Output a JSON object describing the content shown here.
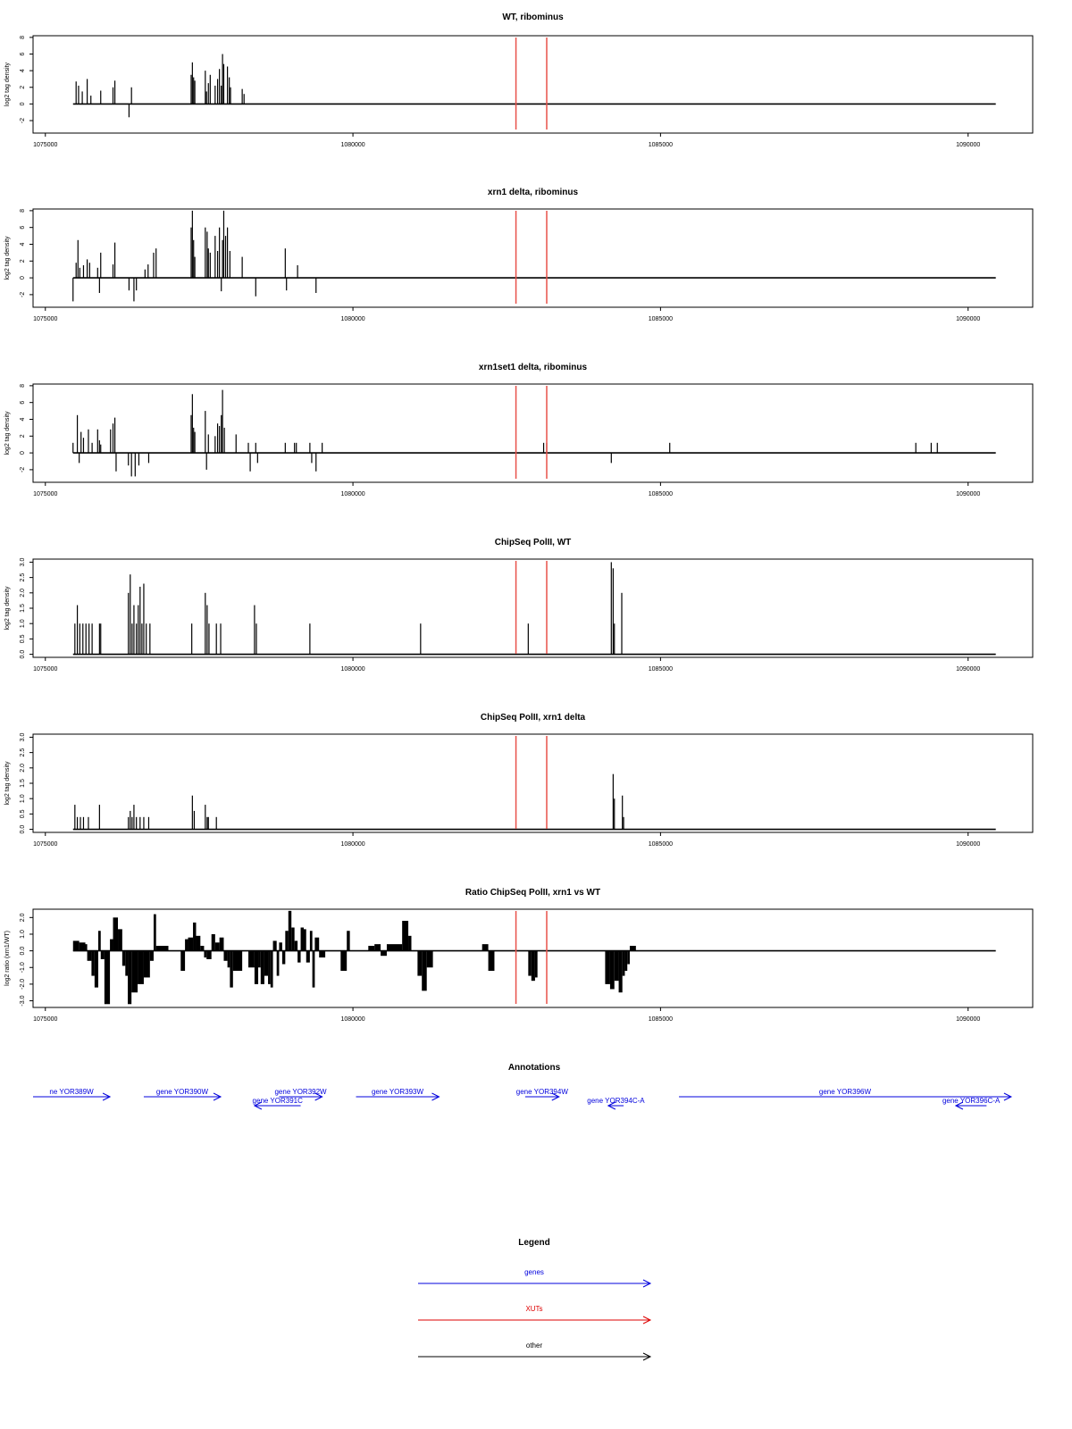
{
  "colors": {
    "signal": "#000000",
    "xut_marker": "#e8514a",
    "gene": "#0000dd",
    "xut": "#dd0000",
    "other": "#000000",
    "axis": "#000000"
  },
  "chart_data": [
    {
      "type": "bar",
      "title": "WT, ribominus",
      "ylabel": "log2 tag density",
      "ylim": [
        -3.5,
        8.2
      ],
      "yticks": [
        -2,
        0,
        2,
        4,
        6,
        8
      ],
      "xlim": [
        1074800,
        1091050
      ],
      "xticks": [
        1075000,
        1080000,
        1085000,
        1090000
      ],
      "baseline": [
        1075450,
        1090450
      ],
      "markers": [
        1082650,
        1083150
      ],
      "bars": [
        [
          1075500,
          2.7
        ],
        [
          1075540,
          2.2
        ],
        [
          1075600,
          1.5
        ],
        [
          1075680,
          3.0
        ],
        [
          1075740,
          1.0
        ],
        [
          1075900,
          1.6
        ],
        [
          1076100,
          2.0
        ],
        [
          1076130,
          2.8
        ],
        [
          1076360,
          -1.6
        ],
        [
          1076400,
          2.0
        ],
        [
          1077370,
          3.5
        ],
        [
          1077390,
          5.0
        ],
        [
          1077410,
          3.2
        ],
        [
          1077430,
          2.8
        ],
        [
          1077600,
          4.0
        ],
        [
          1077620,
          1.5
        ],
        [
          1077650,
          2.5
        ],
        [
          1077680,
          3.5
        ],
        [
          1077760,
          2.2
        ],
        [
          1077800,
          3.0
        ],
        [
          1077830,
          4.2
        ],
        [
          1077860,
          2.2
        ],
        [
          1077880,
          6.0
        ],
        [
          1077900,
          4.8
        ],
        [
          1077960,
          4.5
        ],
        [
          1077990,
          3.2
        ],
        [
          1078010,
          2.0
        ],
        [
          1078200,
          1.8
        ],
        [
          1078230,
          1.2
        ]
      ]
    },
    {
      "type": "bar",
      "title": "xrn1 delta, ribominus",
      "ylabel": "log2 tag density",
      "ylim": [
        -3.5,
        8.2
      ],
      "yticks": [
        -2,
        0,
        2,
        4,
        6,
        8
      ],
      "xlim": [
        1074800,
        1091050
      ],
      "xticks": [
        1075000,
        1080000,
        1085000,
        1090000
      ],
      "baseline": [
        1075450,
        1090450
      ],
      "markers": [
        1082650,
        1083150
      ],
      "bars": [
        [
          1075450,
          -2.8
        ],
        [
          1075500,
          1.8
        ],
        [
          1075530,
          4.5
        ],
        [
          1075560,
          1.2
        ],
        [
          1075620,
          1.5
        ],
        [
          1075680,
          2.2
        ],
        [
          1075720,
          1.8
        ],
        [
          1075850,
          1.2
        ],
        [
          1075880,
          -1.8
        ],
        [
          1075900,
          3.0
        ],
        [
          1076100,
          1.6
        ],
        [
          1076130,
          4.2
        ],
        [
          1076360,
          -1.5
        ],
        [
          1076440,
          -2.8
        ],
        [
          1076480,
          -1.5
        ],
        [
          1076620,
          1.0
        ],
        [
          1076670,
          1.6
        ],
        [
          1076760,
          3.0
        ],
        [
          1076800,
          3.5
        ],
        [
          1077370,
          6.0
        ],
        [
          1077390,
          8.0
        ],
        [
          1077410,
          4.5
        ],
        [
          1077430,
          2.5
        ],
        [
          1077600,
          6.0
        ],
        [
          1077630,
          5.5
        ],
        [
          1077650,
          3.5
        ],
        [
          1077680,
          3.0
        ],
        [
          1077760,
          5.0
        ],
        [
          1077800,
          3.2
        ],
        [
          1077830,
          6.0
        ],
        [
          1077860,
          -1.6
        ],
        [
          1077880,
          4.5
        ],
        [
          1077900,
          8.0
        ],
        [
          1077930,
          5.0
        ],
        [
          1077960,
          6.0
        ],
        [
          1078000,
          3.2
        ],
        [
          1078200,
          2.5
        ],
        [
          1078420,
          -2.2
        ],
        [
          1078900,
          3.5
        ],
        [
          1078920,
          -1.5
        ],
        [
          1079100,
          1.5
        ],
        [
          1079400,
          -1.8
        ]
      ]
    },
    {
      "type": "bar",
      "title": "xrn1set1 delta, ribominus",
      "ylabel": "log2 tag density",
      "ylim": [
        -3.5,
        8.2
      ],
      "yticks": [
        -2,
        0,
        2,
        4,
        6,
        8
      ],
      "xlim": [
        1074800,
        1091050
      ],
      "xticks": [
        1075000,
        1080000,
        1085000,
        1090000
      ],
      "baseline": [
        1075450,
        1090450
      ],
      "markers": [
        1082650,
        1083150
      ],
      "bars": [
        [
          1075450,
          1.2
        ],
        [
          1075520,
          4.5
        ],
        [
          1075550,
          -1.2
        ],
        [
          1075580,
          2.5
        ],
        [
          1075620,
          1.8
        ],
        [
          1075700,
          2.8
        ],
        [
          1075760,
          1.2
        ],
        [
          1075850,
          2.8
        ],
        [
          1075880,
          1.5
        ],
        [
          1075900,
          1.0
        ],
        [
          1076060,
          2.8
        ],
        [
          1076100,
          3.5
        ],
        [
          1076130,
          4.2
        ],
        [
          1076150,
          -2.2
        ],
        [
          1076350,
          -1.5
        ],
        [
          1076400,
          -2.8
        ],
        [
          1076460,
          -2.8
        ],
        [
          1076520,
          -1.5
        ],
        [
          1076680,
          -1.2
        ],
        [
          1077370,
          4.5
        ],
        [
          1077390,
          7.0
        ],
        [
          1077410,
          3.0
        ],
        [
          1077430,
          2.5
        ],
        [
          1077600,
          5.0
        ],
        [
          1077620,
          -2.0
        ],
        [
          1077650,
          2.2
        ],
        [
          1077760,
          2.0
        ],
        [
          1077800,
          3.5
        ],
        [
          1077830,
          3.2
        ],
        [
          1077860,
          4.5
        ],
        [
          1077880,
          7.5
        ],
        [
          1077910,
          3.0
        ],
        [
          1078100,
          2.2
        ],
        [
          1078300,
          1.2
        ],
        [
          1078330,
          -2.2
        ],
        [
          1078420,
          1.2
        ],
        [
          1078450,
          -1.2
        ],
        [
          1078900,
          1.2
        ],
        [
          1079050,
          1.2
        ],
        [
          1079080,
          1.2
        ],
        [
          1079300,
          1.2
        ],
        [
          1079330,
          -1.2
        ],
        [
          1079400,
          -2.2
        ],
        [
          1079500,
          1.2
        ],
        [
          1083100,
          1.2
        ],
        [
          1083150,
          1.2
        ],
        [
          1084200,
          -1.2
        ],
        [
          1085150,
          1.2
        ],
        [
          1089150,
          1.2
        ],
        [
          1089400,
          1.2
        ],
        [
          1089500,
          1.2
        ]
      ]
    },
    {
      "type": "bar",
      "title": "ChipSeq PolII, WT",
      "ylabel": "log2 tag density",
      "ylim": [
        -0.1,
        3.1
      ],
      "yticks": [
        0.0,
        0.5,
        1.0,
        1.5,
        2.0,
        2.5,
        3.0
      ],
      "xlim": [
        1074800,
        1091050
      ],
      "xticks": [
        1075000,
        1080000,
        1085000,
        1090000
      ],
      "baseline": [
        1075450,
        1090450
      ],
      "markers": [
        1082650,
        1083150
      ],
      "bars": [
        [
          1075480,
          1.0
        ],
        [
          1075520,
          1.6
        ],
        [
          1075560,
          1.0
        ],
        [
          1075610,
          1.0
        ],
        [
          1075660,
          1.0
        ],
        [
          1075710,
          1.0
        ],
        [
          1075760,
          1.0
        ],
        [
          1075880,
          1.0
        ],
        [
          1075900,
          1.0
        ],
        [
          1076350,
          2.0
        ],
        [
          1076380,
          2.6
        ],
        [
          1076410,
          1.0
        ],
        [
          1076440,
          1.6
        ],
        [
          1076480,
          1.0
        ],
        [
          1076510,
          1.6
        ],
        [
          1076540,
          2.2
        ],
        [
          1076570,
          1.0
        ],
        [
          1076600,
          2.3
        ],
        [
          1076640,
          1.0
        ],
        [
          1076700,
          1.0
        ],
        [
          1077380,
          1.0
        ],
        [
          1077600,
          2.0
        ],
        [
          1077630,
          1.6
        ],
        [
          1077660,
          1.0
        ],
        [
          1077780,
          1.0
        ],
        [
          1077850,
          1.0
        ],
        [
          1078400,
          1.6
        ],
        [
          1078430,
          1.0
        ],
        [
          1079300,
          1.0
        ],
        [
          1081100,
          1.0
        ],
        [
          1082850,
          1.0
        ],
        [
          1084200,
          3.0
        ],
        [
          1084230,
          2.8
        ],
        [
          1084250,
          1.0
        ],
        [
          1084370,
          2.0
        ]
      ]
    },
    {
      "type": "bar",
      "title": "ChipSeq PolII, xrn1 delta",
      "ylabel": "log2 tag density",
      "ylim": [
        -0.1,
        3.1
      ],
      "yticks": [
        0.0,
        0.5,
        1.0,
        1.5,
        2.0,
        2.5,
        3.0
      ],
      "xlim": [
        1074800,
        1091050
      ],
      "xticks": [
        1075000,
        1080000,
        1085000,
        1090000
      ],
      "baseline": [
        1075450,
        1090450
      ],
      "markers": [
        1082650,
        1083150
      ],
      "bars": [
        [
          1075480,
          0.8
        ],
        [
          1075520,
          0.4
        ],
        [
          1075570,
          0.4
        ],
        [
          1075620,
          0.4
        ],
        [
          1075700,
          0.4
        ],
        [
          1075880,
          0.8
        ],
        [
          1076350,
          0.4
        ],
        [
          1076380,
          0.6
        ],
        [
          1076410,
          0.4
        ],
        [
          1076440,
          0.8
        ],
        [
          1076480,
          0.4
        ],
        [
          1076540,
          0.4
        ],
        [
          1076600,
          0.4
        ],
        [
          1076680,
          0.4
        ],
        [
          1077390,
          1.1
        ],
        [
          1077420,
          0.6
        ],
        [
          1077600,
          0.8
        ],
        [
          1077630,
          0.4
        ],
        [
          1077650,
          0.4
        ],
        [
          1077780,
          0.4
        ],
        [
          1084230,
          1.8
        ],
        [
          1084250,
          1.0
        ],
        [
          1084380,
          1.1
        ],
        [
          1084400,
          0.4
        ]
      ]
    },
    {
      "type": "area",
      "title": "Ratio ChipSeq PolII, xrn1 vs WT",
      "ylabel": "log2 ratio (xrn1/WT)",
      "ylim": [
        -3.4,
        2.5
      ],
      "yticks": [
        -3,
        -2,
        -1,
        0,
        1,
        2
      ],
      "xlim": [
        1074800,
        1091050
      ],
      "xticks": [
        1075000,
        1080000,
        1085000,
        1090000
      ],
      "baseline": [
        1075450,
        1090450
      ],
      "markers": [
        1082650,
        1083150
      ],
      "profile": [
        [
          1075450,
          0.6
        ],
        [
          1075550,
          0.5
        ],
        [
          1075650,
          0.4
        ],
        [
          1075680,
          -0.6
        ],
        [
          1075750,
          -1.5
        ],
        [
          1075800,
          -2.2
        ],
        [
          1075860,
          1.2
        ],
        [
          1075900,
          -0.5
        ],
        [
          1075960,
          -3.2
        ],
        [
          1076050,
          0.7
        ],
        [
          1076100,
          2.0
        ],
        [
          1076180,
          1.3
        ],
        [
          1076250,
          -0.9
        ],
        [
          1076300,
          -1.5
        ],
        [
          1076340,
          -3.2
        ],
        [
          1076400,
          -2.5
        ],
        [
          1076500,
          -2.0
        ],
        [
          1076600,
          -1.6
        ],
        [
          1076700,
          -0.6
        ],
        [
          1076760,
          2.2
        ],
        [
          1076800,
          0.3
        ],
        [
          1077000,
          0.0
        ],
        [
          1077200,
          -1.2
        ],
        [
          1077270,
          0.7
        ],
        [
          1077320,
          0.8
        ],
        [
          1077400,
          1.7
        ],
        [
          1077450,
          0.9
        ],
        [
          1077520,
          0.3
        ],
        [
          1077580,
          -0.4
        ],
        [
          1077620,
          -0.5
        ],
        [
          1077700,
          1.0
        ],
        [
          1077760,
          0.5
        ],
        [
          1077830,
          0.8
        ],
        [
          1077900,
          -0.6
        ],
        [
          1077960,
          -1.0
        ],
        [
          1078000,
          -2.2
        ],
        [
          1078050,
          -1.2
        ],
        [
          1078200,
          0.0
        ],
        [
          1078300,
          -1.0
        ],
        [
          1078400,
          -2.0
        ],
        [
          1078460,
          -1.0
        ],
        [
          1078500,
          -2.0
        ],
        [
          1078560,
          -1.5
        ],
        [
          1078620,
          -2.0
        ],
        [
          1078660,
          -2.2
        ],
        [
          1078700,
          0.6
        ],
        [
          1078760,
          -1.5
        ],
        [
          1078800,
          0.5
        ],
        [
          1078850,
          -0.8
        ],
        [
          1078900,
          1.2
        ],
        [
          1078950,
          2.4
        ],
        [
          1079000,
          1.4
        ],
        [
          1079050,
          0.6
        ],
        [
          1079100,
          -0.7
        ],
        [
          1079150,
          1.4
        ],
        [
          1079200,
          1.3
        ],
        [
          1079240,
          -0.7
        ],
        [
          1079300,
          1.2
        ],
        [
          1079340,
          -2.2
        ],
        [
          1079380,
          0.8
        ],
        [
          1079450,
          -0.4
        ],
        [
          1079550,
          0.0
        ],
        [
          1079800,
          -1.2
        ],
        [
          1079900,
          1.2
        ],
        [
          1079950,
          0.0
        ],
        [
          1080250,
          0.3
        ],
        [
          1080350,
          0.4
        ],
        [
          1080450,
          -0.3
        ],
        [
          1080550,
          0.4
        ],
        [
          1080800,
          1.8
        ],
        [
          1080900,
          0.9
        ],
        [
          1080950,
          0.0
        ],
        [
          1081050,
          -1.5
        ],
        [
          1081120,
          -2.4
        ],
        [
          1081200,
          -1.0
        ],
        [
          1081300,
          0.0
        ],
        [
          1082100,
          0.4
        ],
        [
          1082200,
          -1.2
        ],
        [
          1082300,
          0.0
        ],
        [
          1082850,
          -1.5
        ],
        [
          1082900,
          -1.8
        ],
        [
          1082960,
          -1.6
        ],
        [
          1083000,
          0.0
        ],
        [
          1084100,
          -2.0
        ],
        [
          1084180,
          -2.3
        ],
        [
          1084250,
          -1.8
        ],
        [
          1084320,
          -2.5
        ],
        [
          1084380,
          -1.5
        ],
        [
          1084420,
          -1.2
        ],
        [
          1084460,
          -0.8
        ],
        [
          1084500,
          0.3
        ],
        [
          1084600,
          0.0
        ]
      ]
    }
  ],
  "annotations": {
    "title": "Annotations",
    "genes": [
      {
        "label": "ne YOR389W",
        "start": 1074800,
        "end": 1076050,
        "strand": "+",
        "row": 0
      },
      {
        "label": "gene YOR390W",
        "start": 1076600,
        "end": 1077850,
        "strand": "+",
        "row": 0
      },
      {
        "label": "gene YOR391C",
        "start": 1078400,
        "end": 1079150,
        "strand": "-",
        "row": 1
      },
      {
        "label": "gene YOR392W",
        "start": 1078800,
        "end": 1079500,
        "strand": "+",
        "row": 0
      },
      {
        "label": "gene YOR393W",
        "start": 1080050,
        "end": 1081400,
        "strand": "+",
        "row": 0
      },
      {
        "label": "gene YOR394W",
        "start": 1082800,
        "end": 1083350,
        "strand": "+",
        "row": 0
      },
      {
        "label": "gene YOR394C-A",
        "start": 1084150,
        "end": 1084400,
        "strand": "-",
        "row": 1
      },
      {
        "label": "gene YOR396W",
        "start": 1085300,
        "end": 1090700,
        "strand": "+",
        "row": 0
      },
      {
        "label": "gene YOR396C-A",
        "start": 1089800,
        "end": 1090300,
        "strand": "-",
        "row": 1
      }
    ]
  },
  "legend": {
    "title": "Legend",
    "items": [
      {
        "label": "genes",
        "kind": "gene"
      },
      {
        "label": "XUTs",
        "kind": "xut"
      },
      {
        "label": "other",
        "kind": "other"
      }
    ]
  }
}
